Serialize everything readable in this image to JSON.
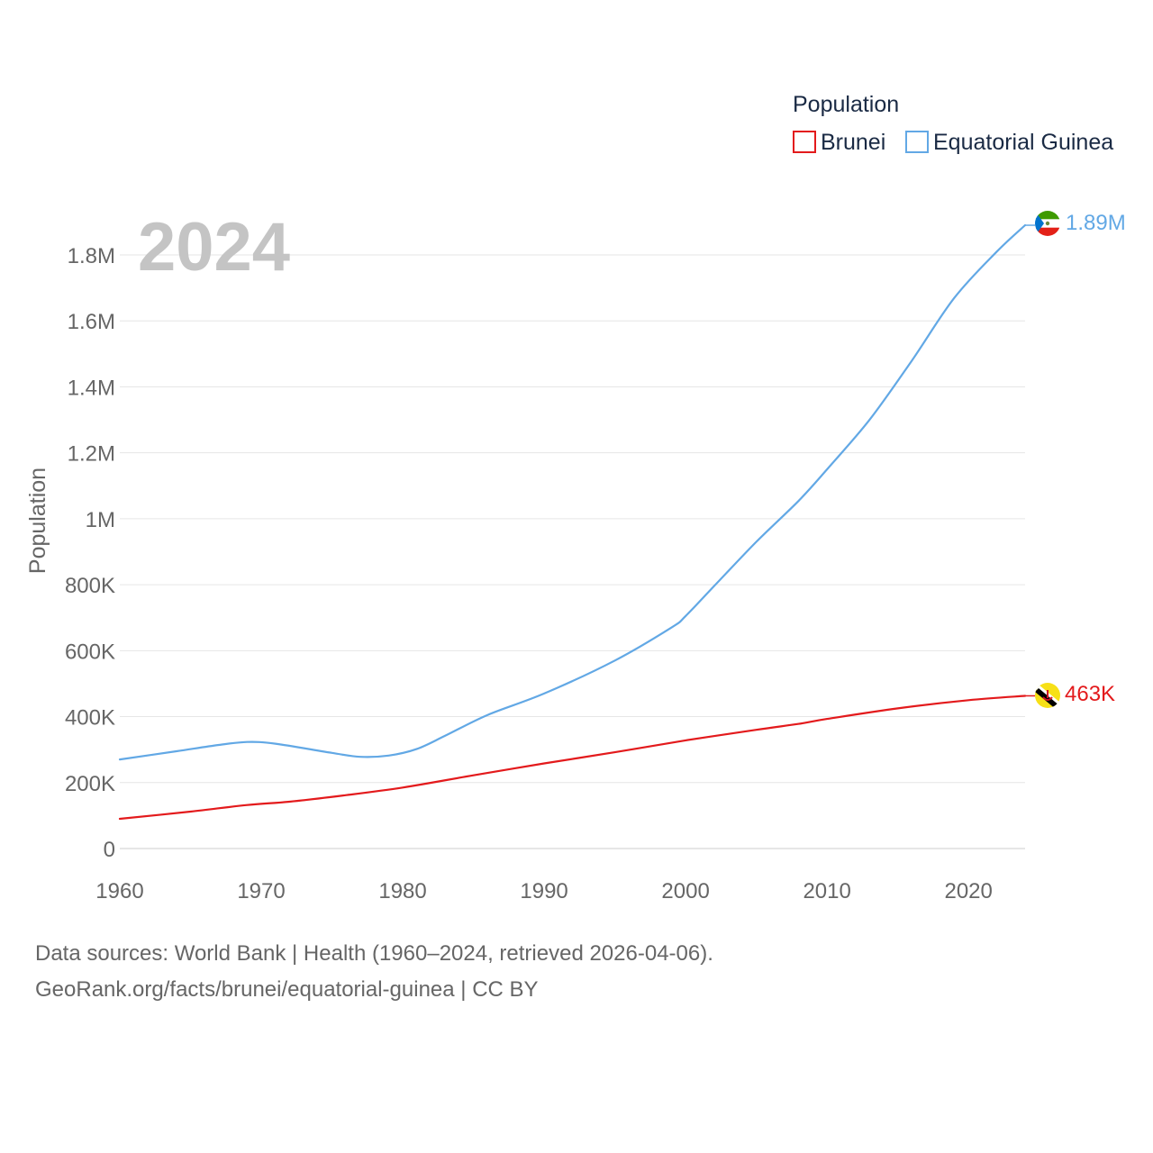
{
  "chart_data": {
    "type": "line",
    "year_label": "2024",
    "ylabel": "Population",
    "xlabel": "",
    "xlim": [
      1960,
      2024
    ],
    "ylim": [
      0,
      1900000
    ],
    "x_ticks": [
      1960,
      1970,
      1980,
      1990,
      2000,
      2010,
      2020
    ],
    "y_ticks": [
      {
        "value": 0,
        "label": "0"
      },
      {
        "value": 200000,
        "label": "200K"
      },
      {
        "value": 400000,
        "label": "400K"
      },
      {
        "value": 600000,
        "label": "600K"
      },
      {
        "value": 800000,
        "label": "800K"
      },
      {
        "value": 1000000,
        "label": "1M"
      },
      {
        "value": 1200000,
        "label": "1.2M"
      },
      {
        "value": 1400000,
        "label": "1.4M"
      },
      {
        "value": 1600000,
        "label": "1.6M"
      },
      {
        "value": 1800000,
        "label": "1.8M"
      }
    ],
    "grid": true,
    "legend": {
      "title": "Population",
      "position": "top-right"
    },
    "series": [
      {
        "name": "Brunei",
        "color": "#e31a1c",
        "end_label": "463K",
        "flag_icon": "brunei-flag-icon",
        "x": [
          1960,
          1965,
          1969,
          1972,
          1976,
          1980,
          1985,
          1990,
          1995,
          2000,
          2005,
          2008,
          2010,
          2015,
          2020,
          2024
        ],
        "y": [
          90000,
          112000,
          132000,
          142000,
          162000,
          185000,
          222000,
          258000,
          292000,
          328000,
          360000,
          378000,
          393000,
          425000,
          450000,
          463000
        ]
      },
      {
        "name": "Equatorial Guinea",
        "color": "#62a8e5",
        "end_label": "1.89M",
        "flag_icon": "equatorial-guinea-flag-icon",
        "x": [
          1960,
          1964,
          1967,
          1969,
          1971,
          1975,
          1977,
          1979,
          1981,
          1983,
          1986,
          1990,
          1995,
          1999,
          2000,
          2002,
          2005,
          2008,
          2010,
          2013,
          2016,
          2019,
          2022,
          2024
        ],
        "y": [
          270000,
          295000,
          314000,
          323000,
          318000,
          290000,
          278000,
          282000,
          302000,
          342000,
          405000,
          470000,
          570000,
          670000,
          705000,
          795000,
          930000,
          1055000,
          1150000,
          1300000,
          1480000,
          1670000,
          1810000,
          1890000
        ]
      }
    ]
  },
  "footer": {
    "sources": "Data sources: World Bank | Health (1960–2024, retrieved 2026-04-06).",
    "attribution": "GeoRank.org/facts/brunei/equatorial-guinea | CC BY"
  }
}
